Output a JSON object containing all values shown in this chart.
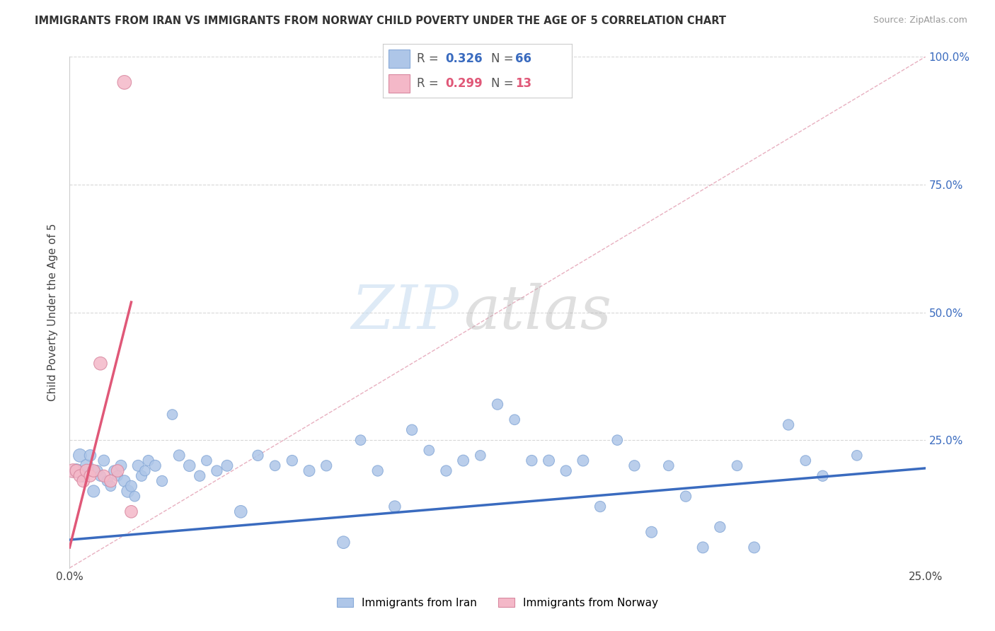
{
  "title": "IMMIGRANTS FROM IRAN VS IMMIGRANTS FROM NORWAY CHILD POVERTY UNDER THE AGE OF 5 CORRELATION CHART",
  "source": "Source: ZipAtlas.com",
  "ylabel": "Child Poverty Under the Age of 5",
  "xlim": [
    0.0,
    0.25
  ],
  "ylim": [
    0.0,
    1.0
  ],
  "iran_R": 0.326,
  "iran_N": 66,
  "norway_R": 0.299,
  "norway_N": 13,
  "iran_color": "#aec6e8",
  "iran_line_color": "#3a6bbf",
  "norway_color": "#f4b8c8",
  "norway_line_color": "#e05878",
  "legend_label_iran": "Immigrants from Iran",
  "legend_label_norway": "Immigrants from Norway",
  "iran_x": [
    0.002,
    0.003,
    0.004,
    0.005,
    0.006,
    0.007,
    0.008,
    0.009,
    0.01,
    0.011,
    0.012,
    0.013,
    0.014,
    0.015,
    0.016,
    0.017,
    0.018,
    0.019,
    0.02,
    0.021,
    0.022,
    0.023,
    0.025,
    0.027,
    0.03,
    0.032,
    0.035,
    0.038,
    0.04,
    0.043,
    0.046,
    0.05,
    0.055,
    0.06,
    0.065,
    0.07,
    0.075,
    0.08,
    0.085,
    0.09,
    0.095,
    0.1,
    0.105,
    0.11,
    0.115,
    0.12,
    0.125,
    0.13,
    0.135,
    0.14,
    0.145,
    0.15,
    0.155,
    0.16,
    0.165,
    0.17,
    0.175,
    0.18,
    0.185,
    0.19,
    0.195,
    0.2,
    0.21,
    0.215,
    0.22,
    0.23
  ],
  "iran_y": [
    0.19,
    0.22,
    0.18,
    0.2,
    0.22,
    0.15,
    0.19,
    0.18,
    0.21,
    0.17,
    0.16,
    0.19,
    0.18,
    0.2,
    0.17,
    0.15,
    0.16,
    0.14,
    0.2,
    0.18,
    0.19,
    0.21,
    0.2,
    0.17,
    0.3,
    0.22,
    0.2,
    0.18,
    0.21,
    0.19,
    0.2,
    0.11,
    0.22,
    0.2,
    0.21,
    0.19,
    0.2,
    0.05,
    0.25,
    0.19,
    0.12,
    0.27,
    0.23,
    0.19,
    0.21,
    0.22,
    0.32,
    0.29,
    0.21,
    0.21,
    0.19,
    0.21,
    0.12,
    0.25,
    0.2,
    0.07,
    0.2,
    0.14,
    0.04,
    0.08,
    0.2,
    0.04,
    0.28,
    0.21,
    0.18,
    0.22
  ],
  "iran_sizes": [
    200,
    180,
    160,
    170,
    140,
    150,
    130,
    120,
    130,
    120,
    110,
    120,
    110,
    130,
    140,
    160,
    130,
    110,
    130,
    120,
    110,
    120,
    130,
    120,
    110,
    130,
    140,
    120,
    110,
    120,
    130,
    160,
    120,
    110,
    120,
    130,
    120,
    160,
    110,
    120,
    140,
    120,
    110,
    120,
    130,
    110,
    120,
    110,
    120,
    130,
    120,
    130,
    120,
    110,
    120,
    130,
    110,
    120,
    130,
    120,
    110,
    130,
    120,
    110,
    120,
    110
  ],
  "norway_x": [
    0.001,
    0.002,
    0.003,
    0.004,
    0.005,
    0.006,
    0.007,
    0.009,
    0.01,
    0.012,
    0.014,
    0.016,
    0.018
  ],
  "norway_y": [
    0.19,
    0.19,
    0.18,
    0.17,
    0.19,
    0.18,
    0.19,
    0.4,
    0.18,
    0.17,
    0.19,
    0.95,
    0.11
  ],
  "norway_sizes": [
    200,
    170,
    160,
    160,
    180,
    150,
    160,
    180,
    150,
    160,
    160,
    200,
    160
  ],
  "iran_trend_x0": 0.0,
  "iran_trend_x1": 0.25,
  "iran_trend_y0": 0.055,
  "iran_trend_y1": 0.195,
  "norway_trend_x0": 0.0,
  "norway_trend_x1": 0.018,
  "norway_trend_y0": 0.04,
  "norway_trend_y1": 0.52,
  "diag_color": "#e8b0c0",
  "background_color": "#ffffff",
  "grid_color": "#d8d8d8",
  "watermark_zip_color": "#c8ddf0",
  "watermark_atlas_color": "#b0b0b0"
}
